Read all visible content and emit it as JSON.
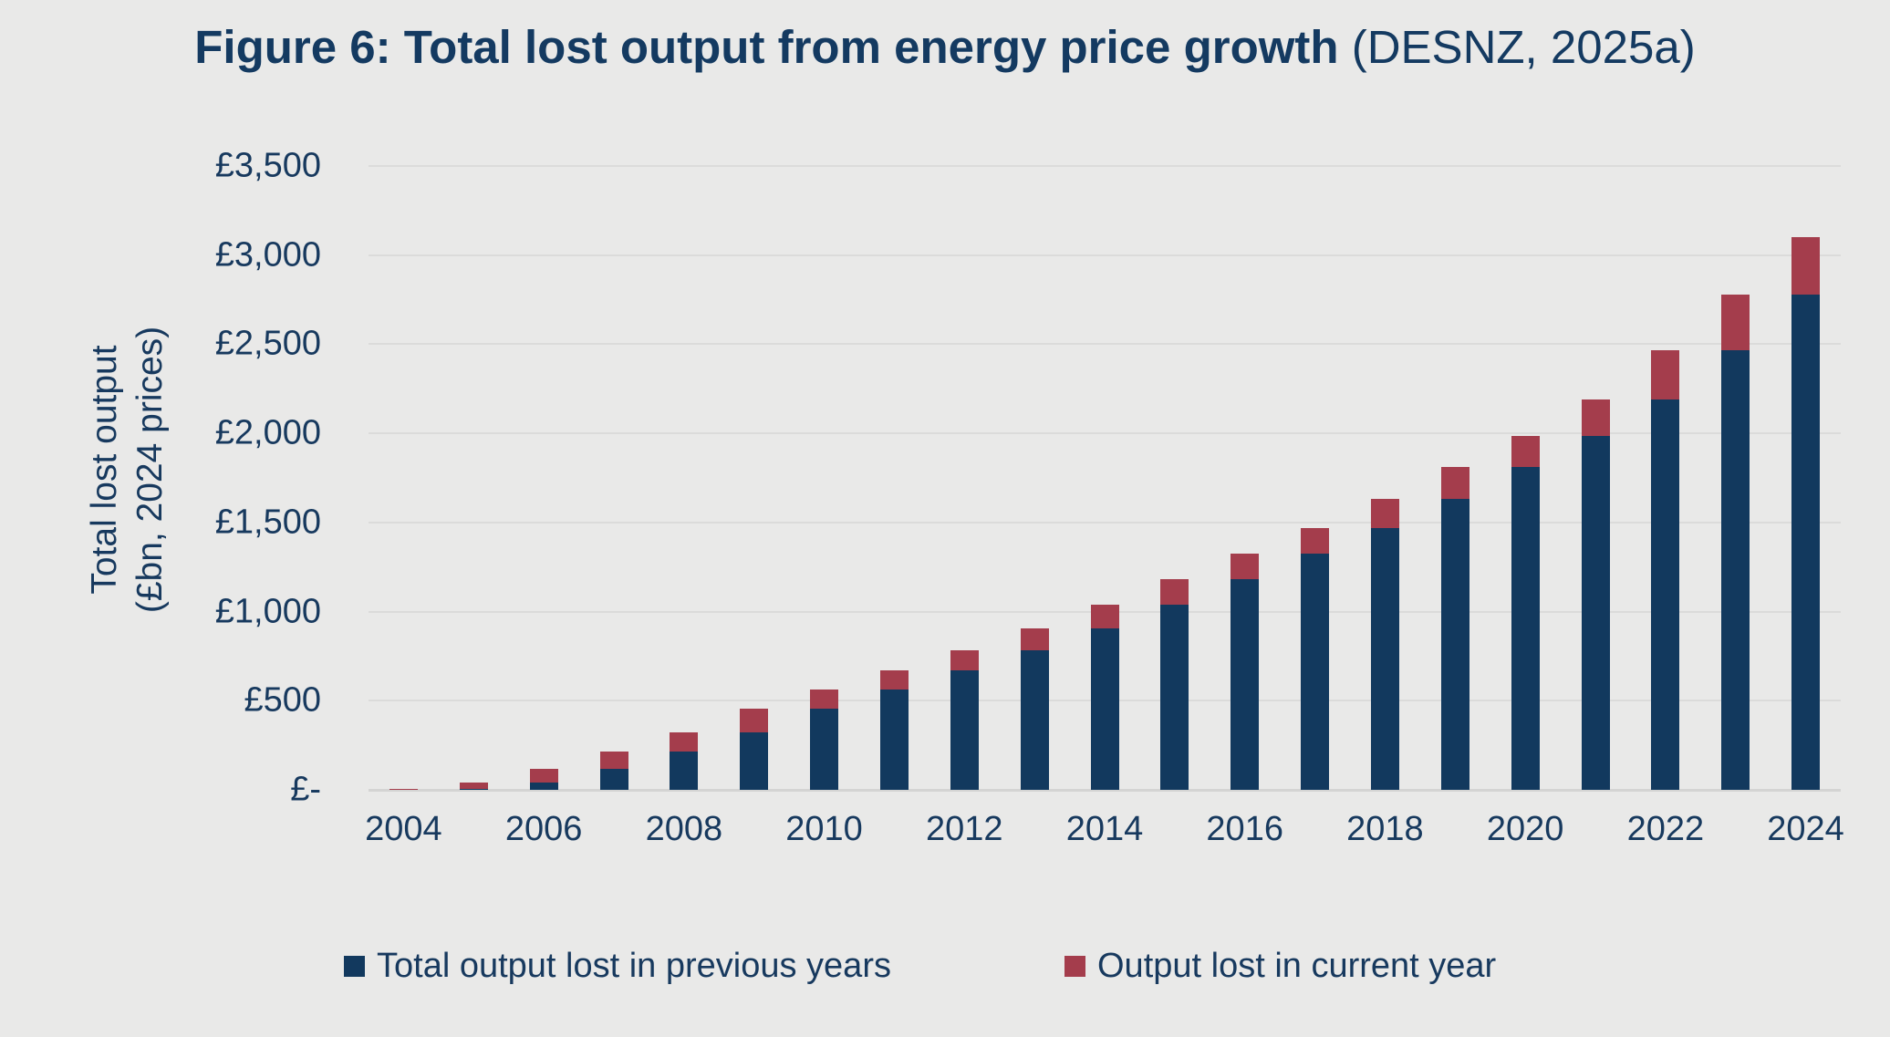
{
  "title": {
    "main": "Figure 6: Total lost output from energy price growth",
    "suffix": " (DESNZ, 2025a)"
  },
  "colors": {
    "background": "#e9e9e8",
    "text_navy": "#17395e",
    "title_navy": "#143a61",
    "gridline": "#dbdbda",
    "axis_line": "#d4d4d3",
    "bar_previous": "#12395e",
    "bar_current": "#a43d4c"
  },
  "y_axis": {
    "title_line1": "Total lost output",
    "title_line2": "(£bn, 2024 prices)",
    "tick_labels": [
      "£3,500",
      "£3,000",
      "£2,500",
      "£2,000",
      "£1,500",
      "£1,000",
      "£500",
      "£-"
    ],
    "tick_values": [
      3500,
      3000,
      2500,
      2000,
      1500,
      1000,
      500,
      0
    ]
  },
  "x_axis": {
    "tick_labels": [
      "2004",
      "2006",
      "2008",
      "2010",
      "2012",
      "2014",
      "2016",
      "2018",
      "2020",
      "2022",
      "2024"
    ]
  },
  "legend": {
    "items": [
      {
        "label": "Total output lost in previous years",
        "color": "#12395e"
      },
      {
        "label": "Output lost in current year",
        "color": "#a43d4c"
      }
    ]
  },
  "chart_data": {
    "type": "bar",
    "stacked": true,
    "title": "Figure 6: Total lost output from energy price growth (DESNZ, 2025a)",
    "xlabel": "",
    "ylabel": "Total lost output (£bn, 2024 prices)",
    "ylim": [
      0,
      3500
    ],
    "ytick_step": 500,
    "grid": "horizontal",
    "legend_position": "bottom",
    "categories": [
      2004,
      2005,
      2006,
      2007,
      2008,
      2009,
      2010,
      2011,
      2012,
      2013,
      2014,
      2015,
      2016,
      2017,
      2018,
      2019,
      2020,
      2021,
      2022,
      2023,
      2024
    ],
    "series": [
      {
        "name": "Total output lost in previous years",
        "color": "#12395e",
        "values": [
          0,
          5,
          40,
          120,
          215,
          325,
          455,
          565,
          670,
          785,
          905,
          1040,
          1180,
          1325,
          1470,
          1630,
          1810,
          1985,
          2190,
          2465,
          2780
        ]
      },
      {
        "name": "Output lost in current year",
        "color": "#a43d4c",
        "values": [
          5,
          35,
          80,
          95,
          110,
          130,
          110,
          105,
          115,
          120,
          135,
          140,
          145,
          145,
          160,
          180,
          175,
          205,
          275,
          315,
          320
        ]
      }
    ],
    "totals": [
      5,
      40,
      120,
      215,
      325,
      455,
      565,
      670,
      785,
      905,
      1040,
      1180,
      1325,
      1470,
      1630,
      1810,
      1985,
      2190,
      2465,
      2780,
      3100
    ]
  }
}
